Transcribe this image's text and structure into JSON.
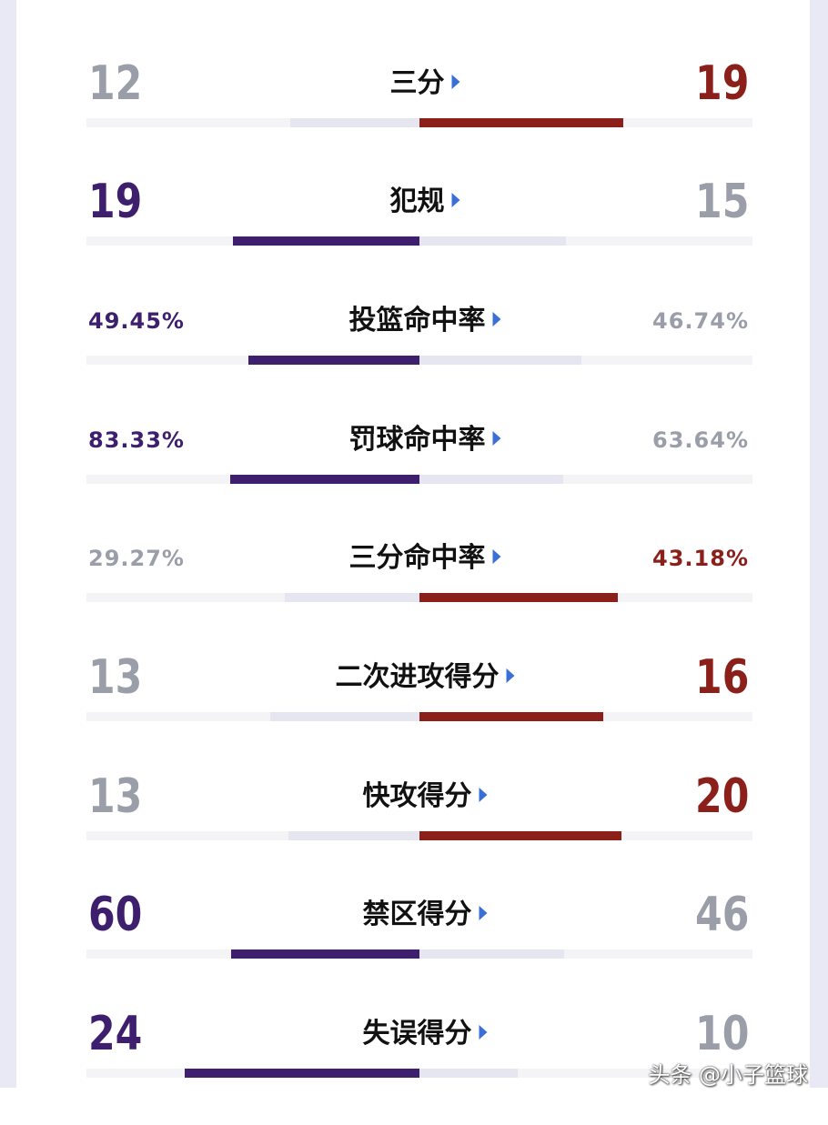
{
  "colors": {
    "home": "#3d1f6e",
    "away": "#8b1f1a",
    "neutral": "#9a9ea8",
    "lose_bar": "#e6e6f1",
    "arrow": "#3a6fd8"
  },
  "stats": [
    {
      "label": "三分",
      "left": "12",
      "right": "19",
      "lv": 12,
      "rv": 19,
      "kind": "big"
    },
    {
      "label": "犯规",
      "left": "19",
      "right": "15",
      "lv": 19,
      "rv": 15,
      "kind": "big"
    },
    {
      "label": "投篮命中率",
      "left": "49.45%",
      "right": "46.74%",
      "lv": 49.45,
      "rv": 46.74,
      "kind": "pct"
    },
    {
      "label": "罚球命中率",
      "left": "83.33%",
      "right": "63.64%",
      "lv": 83.33,
      "rv": 63.64,
      "kind": "pct"
    },
    {
      "label": "三分命中率",
      "left": "29.27%",
      "right": "43.18%",
      "lv": 29.27,
      "rv": 43.18,
      "kind": "pct"
    },
    {
      "label": "二次进攻得分",
      "left": "13",
      "right": "16",
      "lv": 13,
      "rv": 16,
      "kind": "big"
    },
    {
      "label": "快攻得分",
      "left": "13",
      "right": "20",
      "lv": 13,
      "rv": 20,
      "kind": "big"
    },
    {
      "label": "禁区得分",
      "left": "60",
      "right": "46",
      "lv": 60,
      "rv": 46,
      "kind": "big"
    },
    {
      "label": "失误得分",
      "left": "24",
      "right": "10",
      "lv": 24,
      "rv": 10,
      "kind": "big"
    }
  ],
  "watermark": "头条 @小子篮球"
}
